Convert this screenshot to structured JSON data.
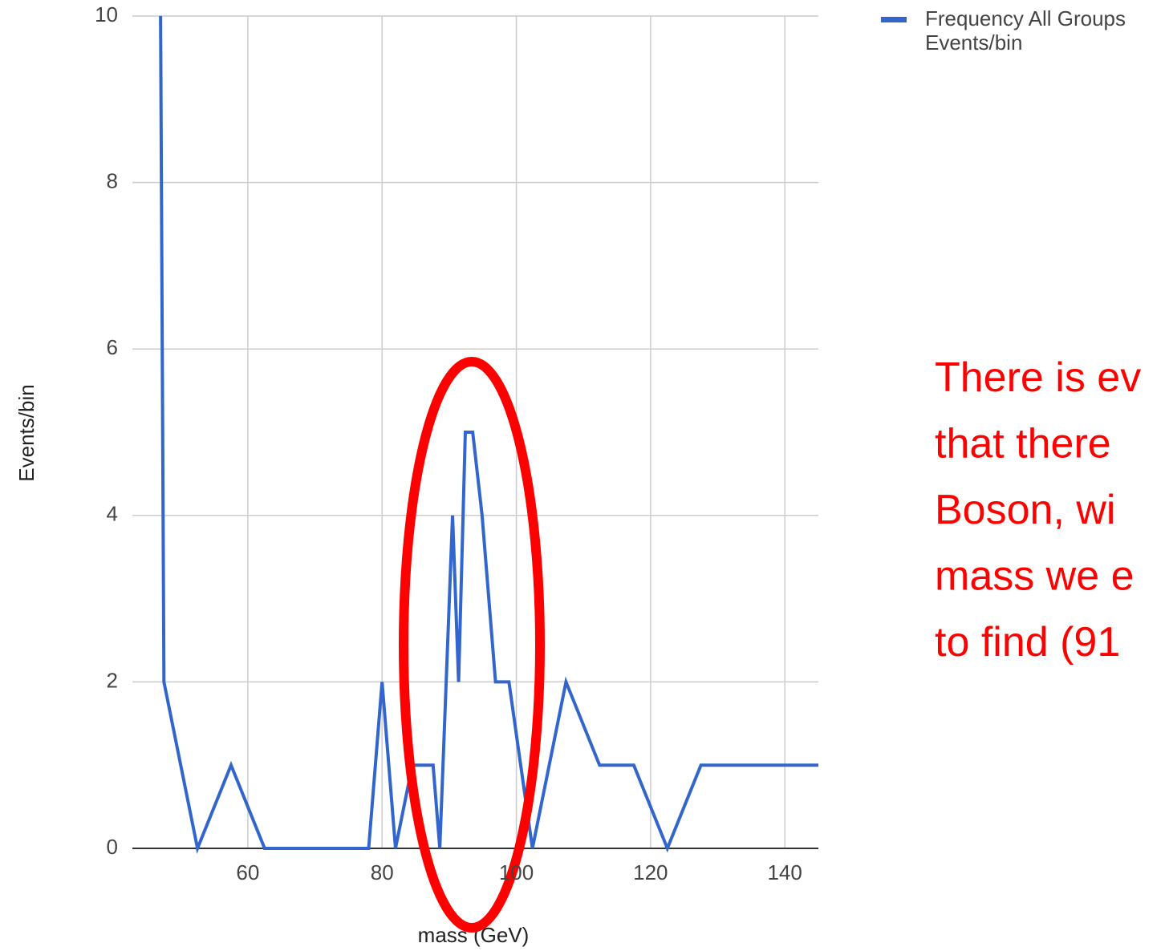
{
  "chart_data": {
    "type": "line",
    "x_label": "mass (GeV)",
    "y_label": "Events/bin",
    "x": [
      47,
      47.5,
      52.5,
      57.5,
      62.5,
      78,
      80,
      82,
      84.5,
      87.6,
      88.6,
      90.5,
      91.4,
      92.4,
      93.5,
      94.9,
      96.9,
      98.9,
      102.4,
      107.4,
      112.4,
      117.5,
      122.5,
      127.5,
      145
    ],
    "series": [
      {
        "name": "Frequency All Groups Events/bin",
        "color": "#3366cc",
        "values": [
          10,
          2,
          0,
          1,
          0,
          0,
          2,
          0,
          1,
          1,
          0,
          4,
          2,
          5,
          5,
          4,
          2,
          2,
          0,
          2,
          1,
          1,
          0,
          1,
          1
        ]
      }
    ],
    "xlim": [
      42.8,
      145
    ],
    "xticks": [
      60,
      80,
      100,
      120,
      140
    ],
    "ylim": [
      0,
      10
    ],
    "yticks": [
      0,
      2,
      4,
      6,
      8,
      10
    ],
    "grid": true,
    "annotation": [
      "There is ev",
      "that there",
      "Boson, wi",
      "mass we e",
      "to find (91"
    ]
  }
}
